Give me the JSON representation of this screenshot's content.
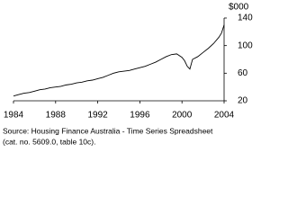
{
  "chart_data": {
    "type": "line",
    "y_unit": "$000",
    "x": [
      1984,
      1984.5,
      1985,
      1985.5,
      1986,
      1986.5,
      1987,
      1987.5,
      1988,
      1988.5,
      1989,
      1989.5,
      1990,
      1990.5,
      1991,
      1991.5,
      1992,
      1992.5,
      1993,
      1993.5,
      1994,
      1994.5,
      1995,
      1995.5,
      1996,
      1996.5,
      1997,
      1997.5,
      1998,
      1998.5,
      1999,
      1999.5,
      2000,
      2000.25,
      2000.5,
      2000.75,
      2001,
      2001.5,
      2002,
      2002.5,
      2003,
      2003.5,
      2003.75,
      2004
    ],
    "series": [
      {
        "color": "#000000",
        "values": [
          27,
          29,
          31,
          32,
          34,
          36,
          37,
          39,
          40,
          41,
          43,
          44,
          46,
          47,
          49,
          50,
          52,
          54,
          57,
          60,
          62,
          63,
          64,
          66,
          68,
          70,
          73,
          76,
          80,
          84,
          87,
          88,
          83,
          78,
          70,
          66,
          80,
          84,
          90,
          96,
          103,
          112,
          118,
          130
        ]
      }
    ],
    "xlim": [
      1984,
      2004
    ],
    "xticks": [
      1984,
      1988,
      1992,
      1996,
      2000,
      2004
    ],
    "ylim": [
      20,
      140
    ],
    "yticks": [
      20,
      60,
      100,
      140
    ],
    "source": [
      "Source: Housing Finance Australia - Time Series Spreadsheet",
      "(cat. no. 5609.0, table 10c)."
    ]
  }
}
